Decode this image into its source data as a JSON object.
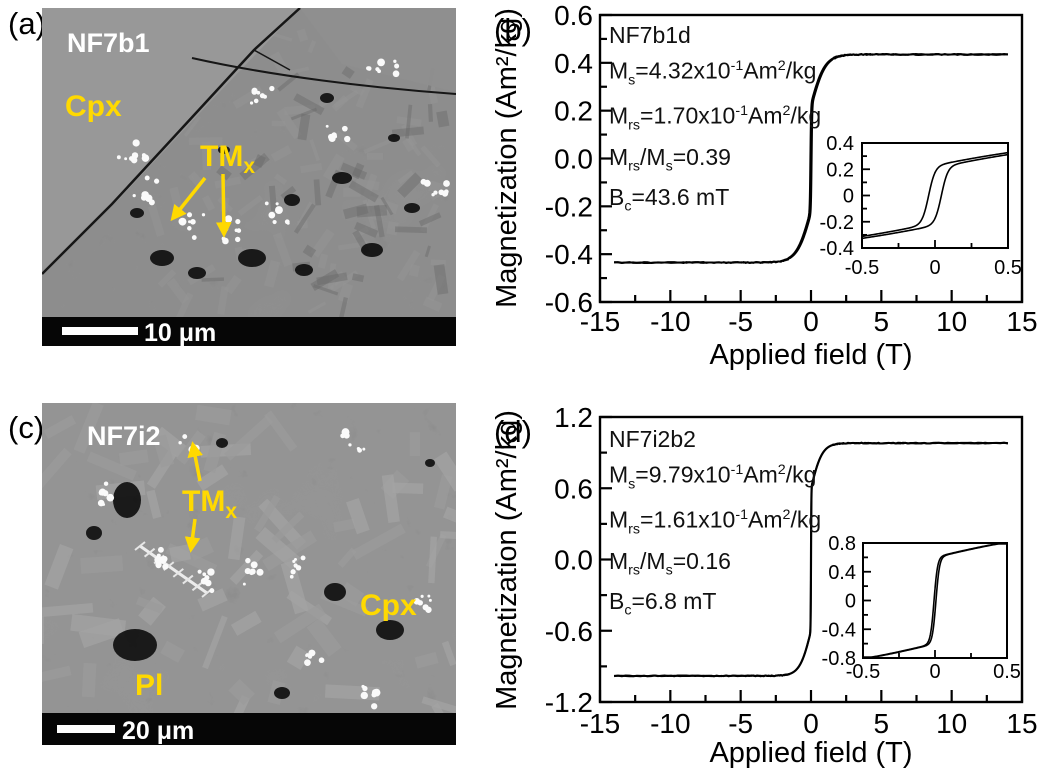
{
  "figure": {
    "background": "#ffffff",
    "accent_yellow": "#ffd900",
    "panels": {
      "a": {
        "tag": "(a)",
        "sample_label": "NF7b1",
        "minerals": {
          "cpx": "Cpx",
          "tmx_main": "TM",
          "tmx_sub": "x"
        },
        "scale_bar": "10 μm"
      },
      "b": {
        "tag": "(b)"
      },
      "c": {
        "tag": "(c)",
        "sample_label": "NF7i2",
        "minerals": {
          "tmx_main": "TM",
          "tmx_sub": "x",
          "cpx": "Cpx",
          "pl": "Pl"
        },
        "scale_bar": "20 μm"
      },
      "d": {
        "tag": "(d)"
      }
    }
  },
  "chart_data": [
    {
      "type": "line",
      "panel": "(b)",
      "sample": "NF7b1d",
      "xlabel": "Applied field (T)",
      "ylabel": "Magnetization (Am²/kg)",
      "xlim": [
        -15,
        15
      ],
      "ylim": [
        -0.6,
        0.6
      ],
      "xticks": [
        "-15",
        "-10",
        "-5",
        "0",
        "5",
        "10",
        "15"
      ],
      "xminor": [
        -12.5,
        -7.5,
        -2.5,
        2.5,
        7.5,
        12.5
      ],
      "yticks": [
        "0.6",
        "0.4",
        "0.2",
        "0.0",
        "-0.2",
        "-0.4",
        "-0.6"
      ],
      "yminor": [
        0.5,
        0.3,
        0.1,
        -0.1,
        -0.3,
        -0.5
      ],
      "annotation_lines": [
        "NF7b1d",
        "M_{s}=4.32x10^{-1}Am^{2}/kg",
        "M_{rs}=1.70x10^{-1}Am^{2}/kg",
        "M_{rs}/M_{s}=0.39",
        "B_{c}=43.6 mT"
      ],
      "parameters": {
        "Ms_Am2kg": 0.432,
        "Mrs_Am2kg": 0.17,
        "Mrs_over_Ms": 0.39,
        "Bc_mT": 43.6
      },
      "loop_model": {
        "Bc_T": 0.0436,
        "Hmax_T": 14,
        "components": [
          {
            "A": 0.22,
            "w": 0.045
          },
          {
            "A": 0.215,
            "w": 1.0
          }
        ]
      },
      "inset": {
        "xlim": [
          -0.5,
          0.5
        ],
        "ylim": [
          -0.4,
          0.4
        ],
        "xticks": [
          "-0.5",
          "0",
          "0.5"
        ],
        "xminor": [
          -0.25,
          0.25
        ],
        "yticks": [
          "0.4",
          "0.2",
          "0",
          "-0.2",
          "-0.4"
        ],
        "yminor": [
          0.3,
          0.1,
          -0.1,
          -0.3
        ]
      }
    },
    {
      "type": "line",
      "panel": "(d)",
      "sample": "NF7i2b2",
      "xlabel": "Applied field (T)",
      "ylabel": "Magnetization (Am²/kg)",
      "xlim": [
        -15,
        15
      ],
      "ylim": [
        -1.2,
        1.2
      ],
      "xticks": [
        "-15",
        "-10",
        "-5",
        "0",
        "5",
        "10",
        "15"
      ],
      "xminor": [
        -12.5,
        -7.5,
        -2.5,
        2.5,
        7.5,
        12.5
      ],
      "yticks": [
        "1.2",
        "0.6",
        "0.0",
        "-0.6",
        "-1.2"
      ],
      "yminor": [
        0.9,
        0.3,
        -0.3,
        -0.9
      ],
      "annotation_lines": [
        "NF7i2b2",
        "M_{s}=9.79x10^{-1}Am^{2}/kg",
        "M_{rs}=1.61x10^{-1}Am^{2}/kg",
        "M_{rs}/M_{s}=0.16",
        "B_{c}=6.8 mT"
      ],
      "parameters": {
        "Ms_Am2kg": 0.979,
        "Mrs_Am2kg": 0.161,
        "Mrs_over_Ms": 0.16,
        "Bc_mT": 6.8
      },
      "loop_model": {
        "Bc_T": 0.0068,
        "Hmax_T": 14,
        "components": [
          {
            "A": 0.6,
            "w": 0.025
          },
          {
            "A": 0.38,
            "w": 0.8
          }
        ]
      },
      "inset": {
        "xlim": [
          -0.5,
          0.5
        ],
        "ylim": [
          -0.8,
          0.8
        ],
        "xticks": [
          "-0.5",
          "0",
          "0.5"
        ],
        "xminor": [
          -0.25,
          0.25
        ],
        "yticks": [
          "0.8",
          "0.4",
          "0",
          "-0.4",
          "-0.8"
        ],
        "yminor": [
          0.6,
          0.2,
          -0.2,
          -0.6
        ]
      }
    }
  ]
}
